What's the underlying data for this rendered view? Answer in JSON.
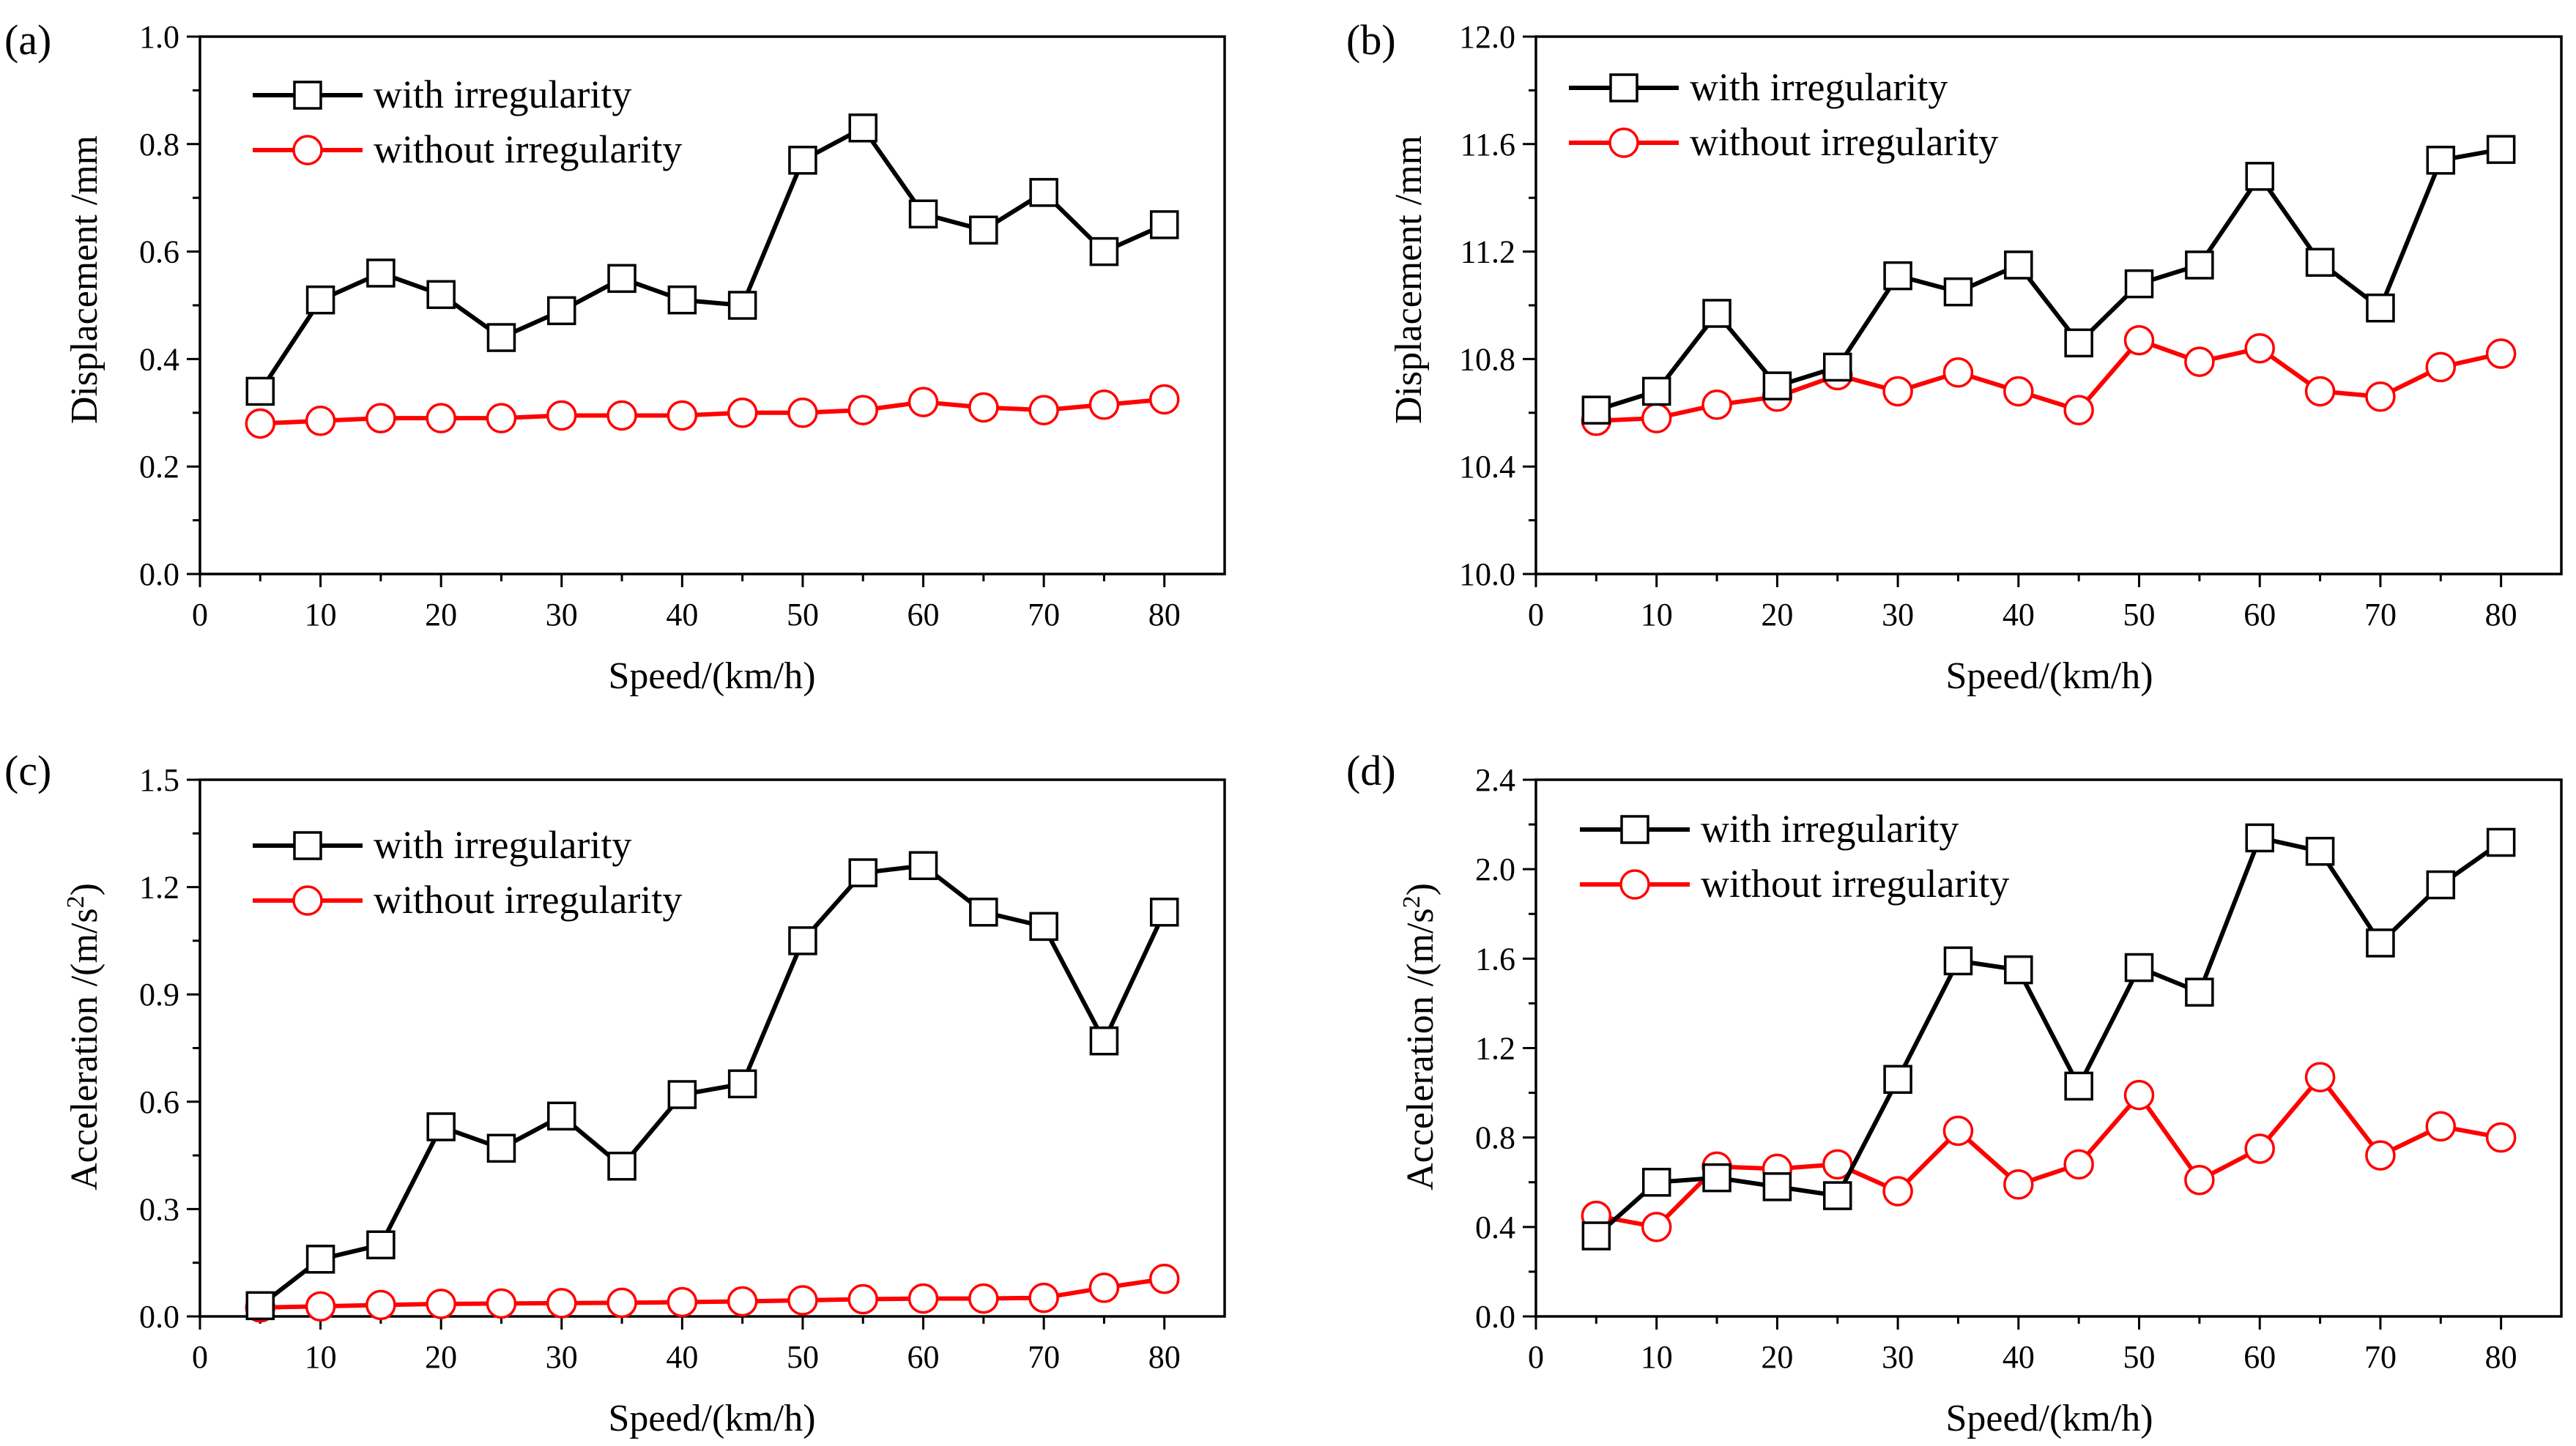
{
  "chart_data": [
    {
      "panel": "(a)",
      "type": "line",
      "xlabel": "Speed/(km/h)",
      "ylabel": "Displacement /mm",
      "ylabel_sup": "",
      "ylabel_tail": "",
      "xlim": [
        0,
        85
      ],
      "ylim": [
        0.0,
        1.0
      ],
      "xticks": [
        0,
        10,
        20,
        30,
        40,
        50,
        60,
        70,
        80
      ],
      "xtick_labels": [
        "0",
        "10",
        "20",
        "30",
        "40",
        "50",
        "60",
        "70",
        "80"
      ],
      "yticks": [
        0.0,
        0.2,
        0.4,
        0.6,
        0.8,
        1.0
      ],
      "ytick_labels": [
        "0.0",
        "0.2",
        "0.4",
        "0.6",
        "0.8",
        "1.0"
      ],
      "legend_position": "top-left",
      "x": [
        5,
        10,
        15,
        20,
        25,
        30,
        35,
        40,
        45,
        50,
        55,
        60,
        65,
        70,
        75,
        80
      ],
      "series": [
        {
          "name": "with irregularity",
          "color": "#000000",
          "marker": "square",
          "values": [
            0.34,
            0.51,
            0.56,
            0.52,
            0.44,
            0.49,
            0.55,
            0.51,
            0.5,
            0.77,
            0.83,
            0.67,
            0.64,
            0.71,
            0.6,
            0.65
          ]
        },
        {
          "name": "without irregularity",
          "color": "#ff0000",
          "marker": "circle",
          "values": [
            0.28,
            0.285,
            0.29,
            0.29,
            0.29,
            0.295,
            0.295,
            0.295,
            0.3,
            0.3,
            0.305,
            0.32,
            0.31,
            0.305,
            0.315,
            0.325
          ]
        }
      ]
    },
    {
      "panel": "(b)",
      "type": "line",
      "xlabel": "Speed/(km/h)",
      "ylabel": "Displacement /mm",
      "ylabel_sup": "",
      "ylabel_tail": "",
      "xlim": [
        0,
        85
      ],
      "ylim": [
        10.0,
        12.0
      ],
      "xticks": [
        0,
        10,
        20,
        30,
        40,
        50,
        60,
        70,
        80
      ],
      "xtick_labels": [
        "0",
        "10",
        "20",
        "30",
        "40",
        "50",
        "60",
        "70",
        "80"
      ],
      "yticks": [
        10.0,
        10.4,
        10.8,
        11.2,
        11.6,
        12.0
      ],
      "ytick_labels": [
        "10.0",
        "10.4",
        "10.8",
        "11.2",
        "11.6",
        "12.0"
      ],
      "legend_position": "top-left",
      "x": [
        5,
        10,
        15,
        20,
        25,
        30,
        35,
        40,
        45,
        50,
        55,
        60,
        65,
        70,
        75,
        80
      ],
      "series": [
        {
          "name": "with irregularity",
          "color": "#000000",
          "marker": "square",
          "values": [
            10.61,
            10.68,
            10.97,
            10.7,
            10.77,
            11.11,
            11.05,
            11.15,
            10.86,
            11.08,
            11.15,
            11.48,
            11.16,
            10.99,
            11.54,
            11.58
          ]
        },
        {
          "name": "without irregularity",
          "color": "#ff0000",
          "marker": "circle",
          "values": [
            10.57,
            10.58,
            10.63,
            10.66,
            10.74,
            10.68,
            10.75,
            10.68,
            10.61,
            10.87,
            10.79,
            10.84,
            10.68,
            10.66,
            10.77,
            10.82
          ]
        }
      ]
    },
    {
      "panel": "(c)",
      "type": "line",
      "xlabel": "Speed/(km/h)",
      "ylabel": "Acceleration /(m/s",
      "ylabel_sup": "2",
      "ylabel_tail": ")",
      "xlim": [
        0,
        85
      ],
      "ylim": [
        0.0,
        1.5
      ],
      "xticks": [
        0,
        10,
        20,
        30,
        40,
        50,
        60,
        70,
        80
      ],
      "xtick_labels": [
        "0",
        "10",
        "20",
        "30",
        "40",
        "50",
        "60",
        "70",
        "80"
      ],
      "yticks": [
        0.0,
        0.3,
        0.6,
        0.9,
        1.2,
        1.5
      ],
      "ytick_labels": [
        "0.0",
        "0.3",
        "0.6",
        "0.9",
        "1.2",
        "1.5"
      ],
      "legend_position": "top-left",
      "x": [
        5,
        10,
        15,
        20,
        25,
        30,
        35,
        40,
        45,
        50,
        55,
        60,
        65,
        70,
        75,
        80
      ],
      "series": [
        {
          "name": "with irregularity",
          "color": "#000000",
          "marker": "square",
          "values": [
            0.03,
            0.16,
            0.2,
            0.53,
            0.47,
            0.56,
            0.42,
            0.62,
            0.65,
            1.05,
            1.24,
            1.26,
            1.13,
            1.09,
            0.77,
            1.13
          ]
        },
        {
          "name": "without irregularity",
          "color": "#ff0000",
          "marker": "circle",
          "values": [
            0.025,
            0.028,
            0.032,
            0.035,
            0.036,
            0.037,
            0.038,
            0.04,
            0.042,
            0.045,
            0.048,
            0.05,
            0.05,
            0.052,
            0.08,
            0.105
          ]
        }
      ]
    },
    {
      "panel": "(d)",
      "type": "line",
      "xlabel": "Speed/(km/h)",
      "ylabel": "Acceleration /(m/s",
      "ylabel_sup": "2",
      "ylabel_tail": ")",
      "xlim": [
        0,
        85
      ],
      "ylim": [
        0.0,
        2.4
      ],
      "xticks": [
        0,
        10,
        20,
        30,
        40,
        50,
        60,
        70,
        80
      ],
      "xtick_labels": [
        "0",
        "10",
        "20",
        "30",
        "40",
        "50",
        "60",
        "70",
        "80"
      ],
      "yticks": [
        0.0,
        0.4,
        0.8,
        1.2,
        1.6,
        2.0,
        2.4
      ],
      "ytick_labels": [
        "0.0",
        "0.4",
        "0.8",
        "1.2",
        "1.6",
        "2.0",
        "2.4"
      ],
      "legend_position": "top-left",
      "x": [
        5,
        10,
        15,
        20,
        25,
        30,
        35,
        40,
        45,
        50,
        55,
        60,
        65,
        70,
        75,
        80
      ],
      "series": [
        {
          "name": "with irregularity",
          "color": "#000000",
          "marker": "square",
          "values": [
            0.36,
            0.6,
            0.62,
            0.58,
            0.54,
            1.06,
            1.59,
            1.55,
            1.03,
            1.56,
            1.45,
            2.14,
            2.08,
            1.67,
            1.93,
            2.12
          ]
        },
        {
          "name": "without irregularity",
          "color": "#ff0000",
          "marker": "circle",
          "values": [
            0.45,
            0.4,
            0.67,
            0.66,
            0.68,
            0.56,
            0.83,
            0.59,
            0.68,
            0.99,
            0.61,
            0.75,
            1.07,
            0.72,
            0.85,
            0.8
          ]
        }
      ]
    }
  ]
}
